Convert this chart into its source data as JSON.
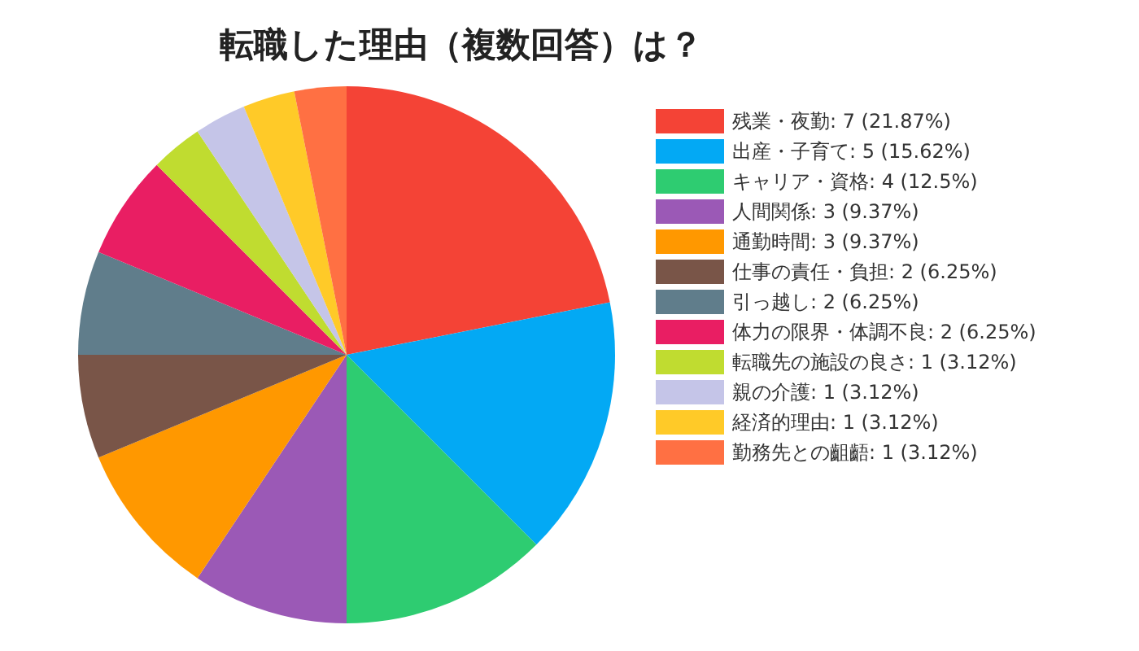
{
  "chart_data": {
    "type": "pie",
    "title": "転職した理由（複数回答）は？",
    "categories": [
      "残業・夜勤",
      "出産・子育て",
      "キャリア・資格",
      "人間関係",
      "通勤時間",
      "仕事の責任・負担",
      "引っ越し",
      "体力の限界・体調不良",
      "転職先の施設の良さ",
      "親の介護",
      "経済的理由",
      "勤務先との齟齬"
    ],
    "values": [
      7,
      5,
      4,
      3,
      3,
      2,
      2,
      2,
      1,
      1,
      1,
      1
    ],
    "value_labels": [
      "7 (21.87%)",
      "5 (15.62%)",
      "4 (12.5%)",
      "3 (9.37%)",
      "3 (9.37%)",
      "2 (6.25%)",
      "2 (6.25%)",
      "2 (6.25%)",
      "1 (3.12%)",
      "1 (3.12%)",
      "1 (3.12%)",
      "1 (3.12%)"
    ],
    "colors": [
      "#f44336",
      "#03a9f4",
      "#2ecc71",
      "#9b59b6",
      "#ff9800",
      "#795548",
      "#607d8b",
      "#e91e63",
      "#c0dc30",
      "#c5c5e8",
      "#ffca28",
      "#ff7043"
    ],
    "legend": "right"
  }
}
